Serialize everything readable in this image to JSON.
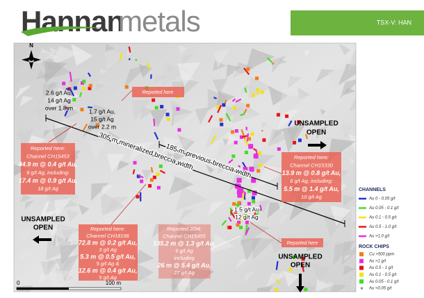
{
  "header": {
    "logo_bold": "Hannan",
    "logo_light": "metals",
    "ticker": "TSX-V: HAN"
  },
  "map": {
    "north": "N",
    "annotations": [
      {
        "lines": [
          "Reported here"
        ]
      },
      {
        "lines": [
          "2.6 g/t Au,",
          "14 g/t Ag",
          "over 1.8 m"
        ]
      },
      {
        "lines": [
          "1.7 g/t Au,",
          "15 g/t Ag",
          "over 2.2 m"
        ]
      },
      {
        "lines": [
          "UNSAMPLED",
          "OPEN"
        ]
      },
      {
        "lines": [
          "305 m mineralized breccia width"
        ]
      },
      {
        "lines": [
          "185 m previous breccia width"
        ]
      },
      {
        "lines": [
          "Reported here:",
          "Channel CH15453",
          "44.9 m @ 0.4 g/t Au,",
          "9 g/t Ag, including:",
          "17.4 m @ 0.9 g/t Au,",
          "18 g/t Ag"
        ]
      },
      {
        "lines": [
          "Reported here:",
          "Channel CH15330",
          "13.9 m @ 0.8 g/t Au,",
          "6 g/t Ag, including:",
          "5.5 m @ 1.4 g/t Au,",
          "10 g/t Ag"
        ]
      },
      {
        "lines": [
          "1.5 g/t Au",
          "12 g/t Ag"
        ]
      },
      {
        "lines": [
          "Reported here"
        ]
      },
      {
        "lines": [
          "UNSAMPLED",
          "OPEN"
        ]
      },
      {
        "lines": [
          "Reported here:",
          "Channel CH18196",
          "72.8 m @ 0.2 g/t Au,",
          "3 g/t Ag",
          "5.3 m @ 0.5 g/t Au,",
          "5 g/t Ag &",
          "12.6 m @ 0.4 g/t Au,",
          "5 g/t Ag"
        ]
      },
      {
        "lines": [
          "Reported 2/24:",
          "Channel CH15455",
          "135.2 m @ 1.3 g/t Au,",
          "9 g/t Ag",
          "including",
          "26 m @ 5.4 g/t Au,",
          "27 g/t Ag"
        ]
      },
      {
        "lines": [
          "UNSAMPLED",
          "OPEN"
        ]
      }
    ],
    "scale": {
      "start": "0",
      "end": "100 m"
    }
  },
  "legend": {
    "channels": {
      "title": "CHANNELS",
      "items": [
        {
          "label": "Au 0 - 0.05 g/t",
          "color": "#2233cc"
        },
        {
          "label": "Au 0.05 - 0.1 g/t",
          "color": "#44dd22"
        },
        {
          "label": "Au 0.1 - 0.5 g/t",
          "color": "#f2e21a"
        },
        {
          "label": "Au 0.5 - 1.0 g/t",
          "color": "#e8141b"
        },
        {
          "label": "Au >1.0 g/t",
          "color": "#e62ee0"
        }
      ]
    },
    "rock_chips": {
      "title": "ROCK CHIPS",
      "items": [
        {
          "label": "Cu >500 ppm",
          "color": "#f07f1a"
        },
        {
          "label": "Au >1 g/t",
          "color": "#e62ee0"
        },
        {
          "label": "Au 0.5 - 1 g/t",
          "color": "#e8141b"
        },
        {
          "label": "Au 0.1 - 0.5 g/t",
          "color": "#f2e21a"
        },
        {
          "label": "Au 0.05 - 0.1 g/t",
          "color": "#44dd22"
        },
        {
          "label": "Au <0.05 g/t",
          "color": "#7788bb"
        }
      ]
    }
  }
}
